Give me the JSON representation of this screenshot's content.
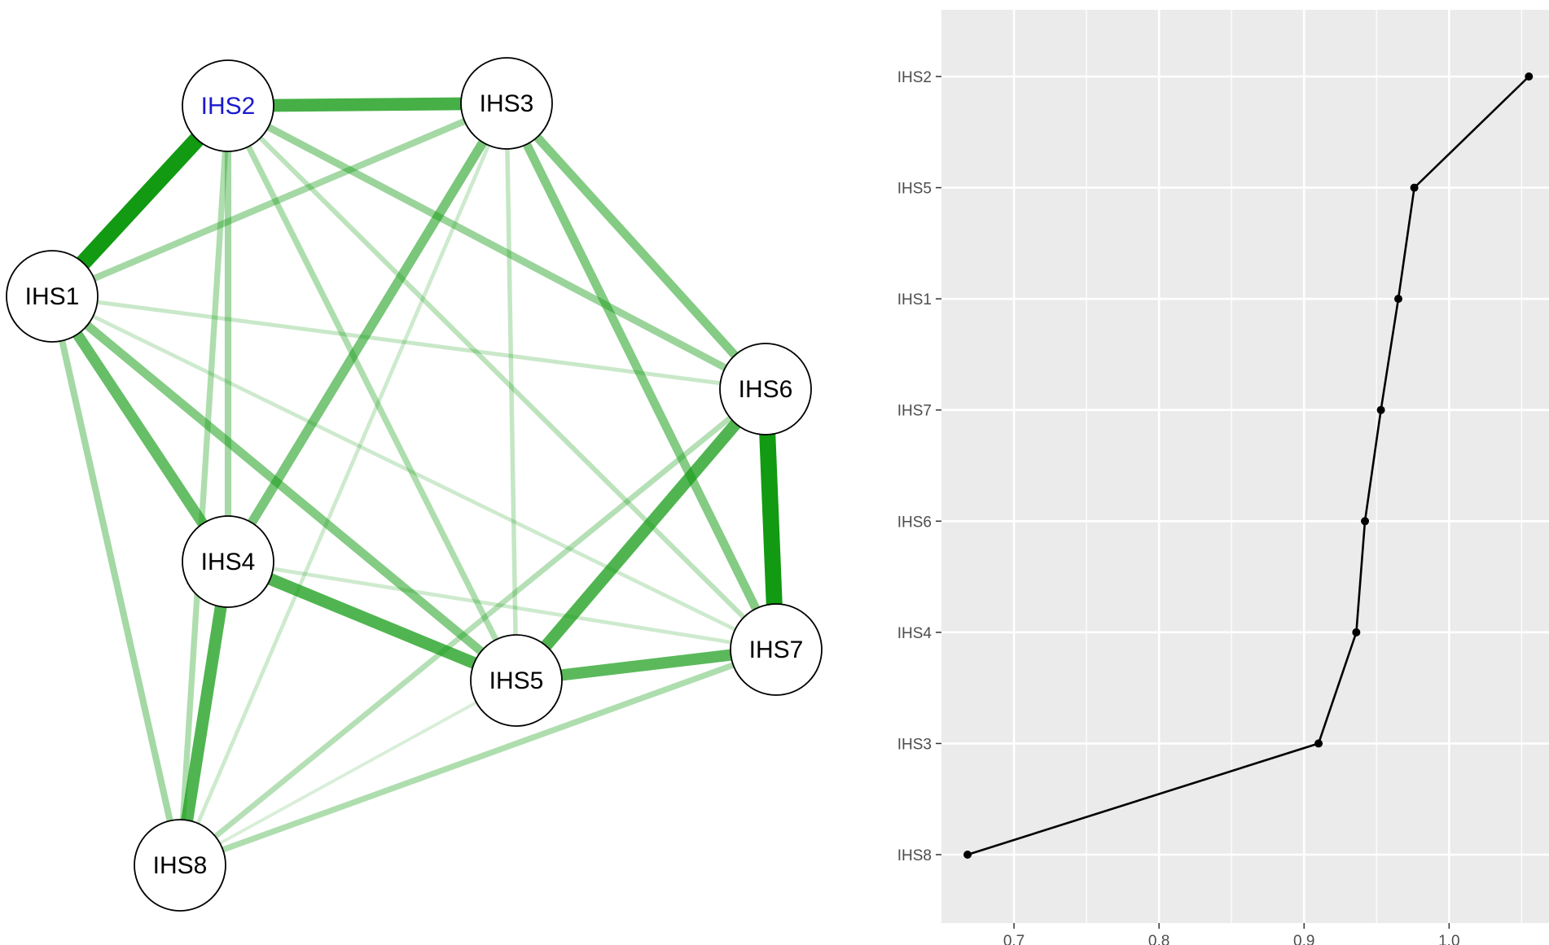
{
  "chart_data": [
    {
      "type": "network",
      "nodes": [
        {
          "id": "IHS1",
          "label": "IHS1",
          "highlight": false
        },
        {
          "id": "IHS2",
          "label": "IHS2",
          "highlight": true
        },
        {
          "id": "IHS3",
          "label": "IHS3",
          "highlight": false
        },
        {
          "id": "IHS4",
          "label": "IHS4",
          "highlight": false
        },
        {
          "id": "IHS5",
          "label": "IHS5",
          "highlight": false
        },
        {
          "id": "IHS6",
          "label": "IHS6",
          "highlight": false
        },
        {
          "id": "IHS7",
          "label": "IHS7",
          "highlight": false
        },
        {
          "id": "IHS8",
          "label": "IHS8",
          "highlight": false
        }
      ],
      "edges": [
        {
          "source": "IHS1",
          "target": "IHS2",
          "weight": 1.0
        },
        {
          "source": "IHS6",
          "target": "IHS7",
          "weight": 1.0
        },
        {
          "source": "IHS2",
          "target": "IHS3",
          "weight": 0.75
        },
        {
          "source": "IHS5",
          "target": "IHS6",
          "weight": 0.7
        },
        {
          "source": "IHS4",
          "target": "IHS8",
          "weight": 0.7
        },
        {
          "source": "IHS4",
          "target": "IHS5",
          "weight": 0.7
        },
        {
          "source": "IHS5",
          "target": "IHS7",
          "weight": 0.65
        },
        {
          "source": "IHS1",
          "target": "IHS4",
          "weight": 0.6
        },
        {
          "source": "IHS3",
          "target": "IHS4",
          "weight": 0.5
        },
        {
          "source": "IHS3",
          "target": "IHS6",
          "weight": 0.45
        },
        {
          "source": "IHS3",
          "target": "IHS7",
          "weight": 0.45
        },
        {
          "source": "IHS1",
          "target": "IHS5",
          "weight": 0.45
        },
        {
          "source": "IHS2",
          "target": "IHS6",
          "weight": 0.35
        },
        {
          "source": "IHS1",
          "target": "IHS3",
          "weight": 0.3
        },
        {
          "source": "IHS1",
          "target": "IHS8",
          "weight": 0.3
        },
        {
          "source": "IHS2",
          "target": "IHS4",
          "weight": 0.3
        },
        {
          "source": "IHS2",
          "target": "IHS8",
          "weight": 0.25
        },
        {
          "source": "IHS2",
          "target": "IHS5",
          "weight": 0.25
        },
        {
          "source": "IHS7",
          "target": "IHS8",
          "weight": 0.25
        },
        {
          "source": "IHS6",
          "target": "IHS8",
          "weight": 0.22
        },
        {
          "source": "IHS2",
          "target": "IHS7",
          "weight": 0.18
        },
        {
          "source": "IHS3",
          "target": "IHS5",
          "weight": 0.15
        },
        {
          "source": "IHS1",
          "target": "IHS6",
          "weight": 0.12
        },
        {
          "source": "IHS1",
          "target": "IHS7",
          "weight": 0.1
        },
        {
          "source": "IHS3",
          "target": "IHS8",
          "weight": 0.1
        },
        {
          "source": "IHS4",
          "target": "IHS7",
          "weight": 0.1
        },
        {
          "source": "IHS5",
          "target": "IHS8",
          "weight": 0.05
        }
      ],
      "edge_color": "#129a12",
      "highlight_color": "#1a1acc"
    },
    {
      "type": "line",
      "categories": [
        "IHS2",
        "IHS5",
        "IHS1",
        "IHS7",
        "IHS6",
        "IHS4",
        "IHS3",
        "IHS8"
      ],
      "values": [
        1.055,
        0.976,
        0.965,
        0.953,
        0.942,
        0.936,
        0.91,
        0.668
      ],
      "xlim": [
        0.65,
        1.07
      ],
      "xticks": [
        0.7,
        0.8,
        0.9,
        1.0
      ],
      "xtick_labels": [
        "0.7",
        "0.8",
        "0.9",
        "1.0"
      ],
      "grid": true,
      "panel_color": "#ebebeb",
      "line_color": "#000000"
    }
  ]
}
